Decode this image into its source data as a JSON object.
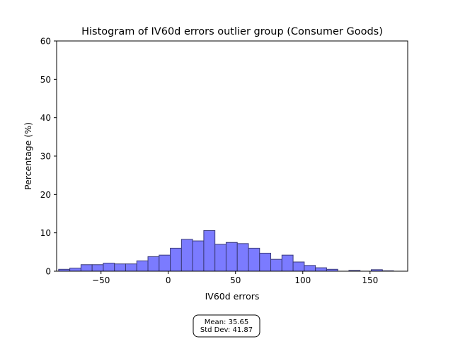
{
  "chart_data": {
    "type": "bar",
    "title": "Histogram of IV60d errors outlier group (Consumer Goods)",
    "xlabel": "IV60d errors",
    "ylabel": "Percentage (%)",
    "xlim": [
      -83,
      178
    ],
    "ylim": [
      0,
      60
    ],
    "xticks": [
      -50,
      0,
      50,
      100,
      150
    ],
    "xtick_labels": [
      "−50",
      "0",
      "50",
      "100",
      "150"
    ],
    "yticks": [
      0,
      10,
      20,
      30,
      40,
      50,
      60
    ],
    "ytick_labels": [
      "0",
      "10",
      "20",
      "30",
      "40",
      "50",
      "60"
    ],
    "bin_width": 8.3,
    "bins": [
      {
        "x0": -81.5,
        "value": 0.5
      },
      {
        "x0": -73.2,
        "value": 0.8
      },
      {
        "x0": -64.9,
        "value": 1.7
      },
      {
        "x0": -56.6,
        "value": 1.7
      },
      {
        "x0": -48.3,
        "value": 2.1
      },
      {
        "x0": -40.0,
        "value": 1.9
      },
      {
        "x0": -31.7,
        "value": 1.9
      },
      {
        "x0": -23.4,
        "value": 2.7
      },
      {
        "x0": -15.1,
        "value": 3.8
      },
      {
        "x0": -6.8,
        "value": 4.2
      },
      {
        "x0": 1.5,
        "value": 6.0
      },
      {
        "x0": 9.8,
        "value": 8.3
      },
      {
        "x0": 18.1,
        "value": 7.9
      },
      {
        "x0": 26.4,
        "value": 10.6
      },
      {
        "x0": 34.7,
        "value": 7.0
      },
      {
        "x0": 43.0,
        "value": 7.5
      },
      {
        "x0": 51.3,
        "value": 7.2
      },
      {
        "x0": 59.6,
        "value": 6.0
      },
      {
        "x0": 67.9,
        "value": 4.7
      },
      {
        "x0": 76.2,
        "value": 3.1
      },
      {
        "x0": 84.5,
        "value": 4.2
      },
      {
        "x0": 92.8,
        "value": 2.4
      },
      {
        "x0": 101.1,
        "value": 1.5
      },
      {
        "x0": 109.4,
        "value": 0.9
      },
      {
        "x0": 117.7,
        "value": 0.5
      },
      {
        "x0": 126.0,
        "value": 0.0
      },
      {
        "x0": 134.3,
        "value": 0.2
      },
      {
        "x0": 142.6,
        "value": 0.0
      },
      {
        "x0": 150.9,
        "value": 0.4
      },
      {
        "x0": 159.2,
        "value": 0.1
      }
    ],
    "colors": {
      "fill": "#7b7bff",
      "edge": "#3a3a78"
    },
    "grid": false,
    "legend": "none",
    "annotation": {
      "lines": [
        "Mean: 35.65",
        "Std Dev: 41.87"
      ],
      "placement": "bottom-center"
    }
  }
}
